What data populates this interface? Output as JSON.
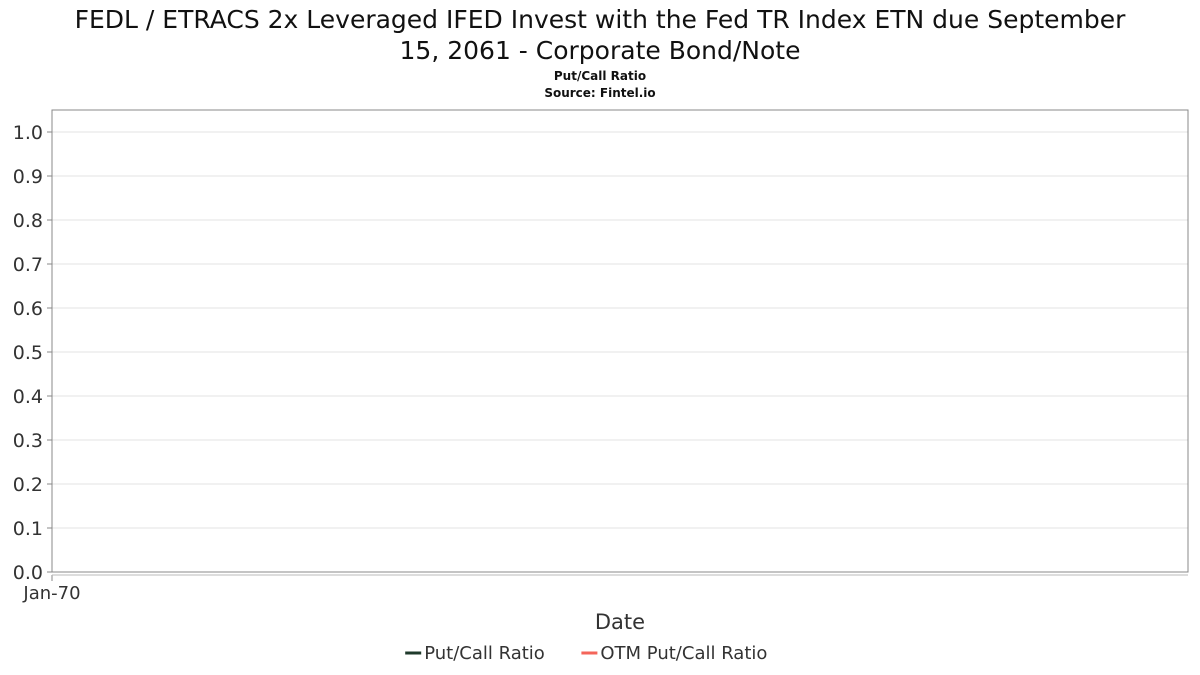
{
  "chart_data": {
    "type": "line",
    "title_line1": "FEDL / ETRACS 2x Leveraged IFED Invest with the Fed TR Index ETN due September",
    "title_line2": "15, 2061 - Corporate Bond/Note",
    "subtitle_line1": "Put/Call Ratio",
    "subtitle_line2": "Source: Fintel.io",
    "xlabel": "Date",
    "ylabel": "",
    "x_ticks": [
      "Jan-70"
    ],
    "y_ticks": [
      "0.0",
      "0.1",
      "0.2",
      "0.3",
      "0.4",
      "0.5",
      "0.6",
      "0.7",
      "0.8",
      "0.9",
      "1.0"
    ],
    "ylim": [
      0,
      1.0
    ],
    "grid": true,
    "legend_position": "bottom-center",
    "series": [
      {
        "name": "Put/Call Ratio",
        "color": "#1f3a2b",
        "values": []
      },
      {
        "name": "OTM Put/Call Ratio",
        "color": "#f4655a",
        "values": []
      }
    ]
  }
}
